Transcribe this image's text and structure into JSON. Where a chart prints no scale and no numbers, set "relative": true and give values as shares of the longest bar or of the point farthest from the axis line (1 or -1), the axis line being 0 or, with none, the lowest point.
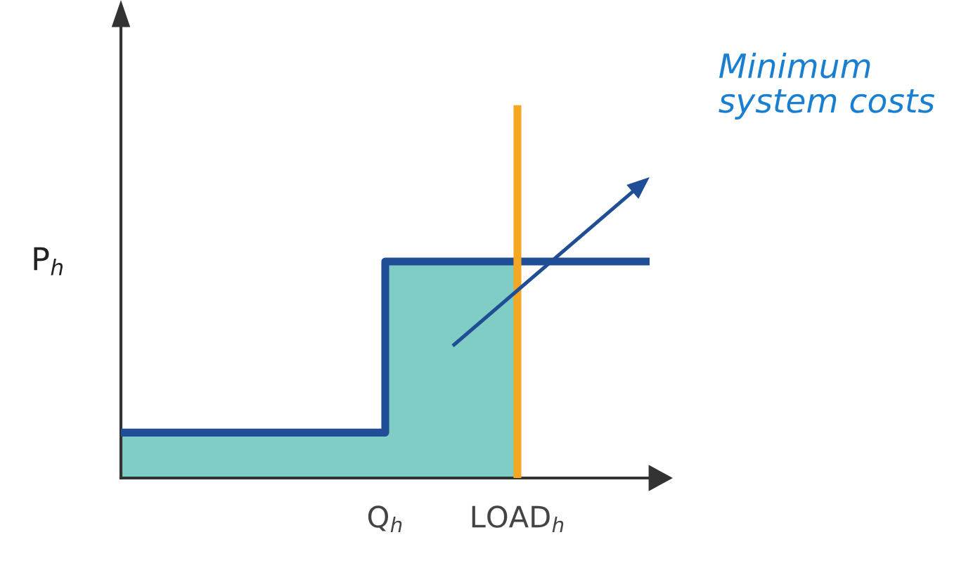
{
  "chart_data": {
    "type": "step",
    "relative": true,
    "ylabel": "P$_{h}$",
    "categories": [
      null,
      null,
      null,
      null,
      "Q$_{h}$",
      null,
      "LOAD$_{h}$",
      null,
      null
    ],
    "series": [
      {
        "type": "area",
        "color": "#80cdc5",
        "values": [
          0.21,
          0.21,
          0.21,
          0.21,
          1,
          1,
          1,
          null,
          null
        ]
      },
      {
        "color": "#1f4e96",
        "values": [
          0.21,
          0.21,
          0.21,
          0.21,
          1,
          1,
          1,
          1,
          1
        ]
      }
    ],
    "ref_lines": [
      {
        "axis": "x",
        "value": "LOAD$_{h}$",
        "color": "#f5a623"
      }
    ],
    "annotations": [
      "Minimum\nsystem costs"
    ],
    "grid": false,
    "legend": false
  }
}
